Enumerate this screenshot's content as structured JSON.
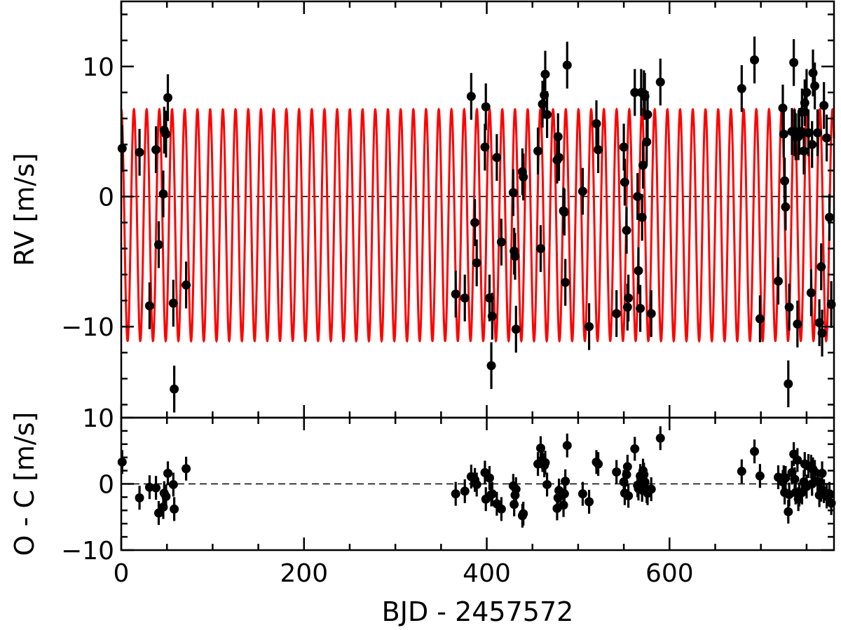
{
  "chart_data": [
    {
      "type": "scatter",
      "panel": "top",
      "ylabel": "RV [m/s]",
      "xlim": [
        0,
        780
      ],
      "ylim": [
        -17,
        15
      ],
      "x_ticks": [
        0,
        200,
        400,
        600
      ],
      "y_ticks": [
        -10,
        0,
        10
      ],
      "y_tick_labels": [
        "−10",
        "0",
        "10"
      ],
      "zero_line": "dashed",
      "grid": false,
      "model": {
        "name": "",
        "color": "#ff0000",
        "type": "sinusoid",
        "amplitude": 8.9,
        "offset": -2.2,
        "period": 13.9,
        "phase": 0.0
      },
      "series": [
        {
          "color": "#000000",
          "error": 1.8,
          "points": [
            [
              1,
              3.7
            ],
            [
              20,
              3.4
            ],
            [
              31,
              -8.4
            ],
            [
              38,
              3.6
            ],
            [
              41,
              -3.7
            ],
            [
              46,
              0.2
            ],
            [
              47,
              5.1
            ],
            [
              49,
              4.8
            ],
            [
              51,
              7.6
            ],
            [
              57,
              -8.2
            ],
            [
              58,
              -14.8
            ],
            [
              71,
              -6.8
            ],
            [
              366,
              -7.5
            ],
            [
              376,
              -7.8
            ],
            [
              383,
              7.7
            ],
            [
              387,
              -2.0
            ],
            [
              389,
              -5.1
            ],
            [
              398,
              3.8
            ],
            [
              399,
              6.9
            ],
            [
              403,
              -7.8
            ],
            [
              405,
              -13.0
            ],
            [
              406,
              -9.2
            ],
            [
              411,
              3.0
            ],
            [
              416,
              -3.5
            ],
            [
              429,
              0.3
            ],
            [
              430,
              -4.2
            ],
            [
              431,
              -4.6
            ],
            [
              432,
              -10.2
            ],
            [
              439,
              1.9
            ],
            [
              440,
              1.5
            ],
            [
              456,
              3.5
            ],
            [
              459,
              -4.0
            ],
            [
              461,
              7.1
            ],
            [
              463,
              7.8
            ],
            [
              464,
              9.4
            ],
            [
              466,
              6.3
            ],
            [
              477,
              2.8
            ],
            [
              478,
              4.6
            ],
            [
              479,
              3.0
            ],
            [
              484,
              -1.1
            ],
            [
              485,
              -1.2
            ],
            [
              486,
              -6.6
            ],
            [
              488,
              10.1
            ],
            [
              505,
              0.4
            ],
            [
              512,
              -10.0
            ],
            [
              520,
              5.6
            ],
            [
              522,
              3.6
            ],
            [
              542,
              -9.0
            ],
            [
              550,
              3.8
            ],
            [
              551,
              1.1
            ],
            [
              553,
              -2.6
            ],
            [
              554,
              -8.5
            ],
            [
              555,
              -7.8
            ],
            [
              562,
              8.0
            ],
            [
              565,
              0.0
            ],
            [
              566,
              -5.7
            ],
            [
              568,
              -8.6
            ],
            [
              569,
              8.0
            ],
            [
              570,
              -1.6
            ],
            [
              571,
              2.4
            ],
            [
              572,
              7.9
            ],
            [
              573,
              7.7
            ],
            [
              575,
              4.2
            ],
            [
              576,
              6.3
            ],
            [
              580,
              -9.0
            ],
            [
              590,
              8.8
            ],
            [
              679,
              8.3
            ],
            [
              693,
              10.5
            ],
            [
              699,
              -9.4
            ],
            [
              719,
              -6.5
            ],
            [
              724,
              6.8
            ],
            [
              725,
              4.8
            ],
            [
              726,
              1.2
            ],
            [
              727,
              -0.8
            ],
            [
              730,
              -14.4
            ],
            [
              731,
              -8.5
            ],
            [
              734,
              5.0
            ],
            [
              736,
              10.3
            ],
            [
              737,
              4.9
            ],
            [
              738,
              4.6
            ],
            [
              740,
              -9.8
            ],
            [
              741,
              4.6
            ],
            [
              742,
              5.0
            ],
            [
              745,
              6.5
            ],
            [
              747,
              3.5
            ],
            [
              748,
              7.2
            ],
            [
              750,
              8.0
            ],
            [
              752,
              4.9
            ],
            [
              755,
              -7.4
            ],
            [
              756,
              4.0
            ],
            [
              757,
              9.5
            ],
            [
              759,
              8.5
            ],
            [
              762,
              4.9
            ],
            [
              764,
              -9.7
            ],
            [
              766,
              -5.4
            ],
            [
              767,
              -10.5
            ],
            [
              769,
              7.0
            ],
            [
              772,
              4.5
            ],
            [
              775,
              -1.6
            ],
            [
              777,
              -8.3
            ]
          ]
        }
      ]
    },
    {
      "type": "scatter",
      "panel": "bottom",
      "xlabel": "BJD - 2457572",
      "ylabel": "O - C [m/s]",
      "xlim": [
        0,
        780
      ],
      "ylim": [
        -10,
        10
      ],
      "x_ticks": [
        0,
        200,
        400,
        600
      ],
      "x_tick_labels": [
        "0",
        "200",
        "400",
        "600"
      ],
      "y_ticks": [
        -10,
        0,
        10
      ],
      "y_tick_labels": [
        "−10",
        "0",
        "10"
      ],
      "zero_line": "dashed",
      "grid": false,
      "series": [
        {
          "color": "#000000",
          "error": 1.8,
          "points": [
            [
              1,
              3.3
            ],
            [
              20,
              -2.1
            ],
            [
              31,
              -0.5
            ],
            [
              38,
              -0.6
            ],
            [
              41,
              -4.4
            ],
            [
              46,
              -3.5
            ],
            [
              47,
              -1.4
            ],
            [
              49,
              -1.9
            ],
            [
              51,
              1.6
            ],
            [
              57,
              -0.1
            ],
            [
              58,
              -3.8
            ],
            [
              71,
              2.3
            ],
            [
              366,
              -1.5
            ],
            [
              376,
              -1.1
            ],
            [
              383,
              1.1
            ],
            [
              387,
              0.6
            ],
            [
              389,
              -0.1
            ],
            [
              398,
              1.7
            ],
            [
              399,
              -2.3
            ],
            [
              403,
              0.9
            ],
            [
              405,
              -1.6
            ],
            [
              406,
              -1.5
            ],
            [
              411,
              -3.0
            ],
            [
              416,
              -3.8
            ],
            [
              429,
              -0.3
            ],
            [
              430,
              -3.1
            ],
            [
              431,
              -1.7
            ],
            [
              432,
              -0.8
            ],
            [
              439,
              -4.8
            ],
            [
              440,
              -4.5
            ],
            [
              456,
              3.0
            ],
            [
              459,
              5.4
            ],
            [
              461,
              3.6
            ],
            [
              463,
              2.8
            ],
            [
              464,
              3.2
            ],
            [
              466,
              -0.1
            ],
            [
              477,
              -3.7
            ],
            [
              478,
              -2.1
            ],
            [
              479,
              -1.0
            ],
            [
              484,
              -3.2
            ],
            [
              485,
              -1.5
            ],
            [
              486,
              0.4
            ],
            [
              488,
              5.8
            ],
            [
              505,
              -1.5
            ],
            [
              512,
              -2.7
            ],
            [
              520,
              3.3
            ],
            [
              522,
              3.0
            ],
            [
              542,
              1.8
            ],
            [
              550,
              0.3
            ],
            [
              551,
              -1.4
            ],
            [
              553,
              1.4
            ],
            [
              554,
              2.6
            ],
            [
              555,
              -1.8
            ],
            [
              562,
              5.3
            ],
            [
              565,
              -0.2
            ],
            [
              566,
              -0.7
            ],
            [
              568,
              1.2
            ],
            [
              569,
              0.2
            ],
            [
              570,
              -0.9
            ],
            [
              571,
              2.0
            ],
            [
              572,
              1.4
            ],
            [
              573,
              0.3
            ],
            [
              575,
              -1.1
            ],
            [
              576,
              -1.4
            ],
            [
              580,
              -0.8
            ],
            [
              590,
              6.9
            ],
            [
              679,
              1.9
            ],
            [
              693,
              4.9
            ],
            [
              699,
              1.2
            ],
            [
              719,
              1.0
            ],
            [
              724,
              0.3
            ],
            [
              725,
              1.0
            ],
            [
              726,
              -1.3
            ],
            [
              727,
              0.9
            ],
            [
              730,
              -4.2
            ],
            [
              731,
              -1.6
            ],
            [
              734,
              1.7
            ],
            [
              736,
              4.5
            ],
            [
              737,
              0.7
            ],
            [
              738,
              -1.3
            ],
            [
              740,
              3.6
            ],
            [
              741,
              -2.3
            ],
            [
              742,
              -1.6
            ],
            [
              745,
              -1.3
            ],
            [
              747,
              0.3
            ],
            [
              748,
              3.0
            ],
            [
              750,
              -0.4
            ],
            [
              752,
              2.7
            ],
            [
              755,
              2.6
            ],
            [
              756,
              0.0
            ],
            [
              757,
              2.2
            ],
            [
              759,
              1.8
            ],
            [
              762,
              0.4
            ],
            [
              764,
              -1.7
            ],
            [
              766,
              -0.9
            ],
            [
              767,
              1.6
            ],
            [
              769,
              -1.1
            ],
            [
              772,
              -1.9
            ],
            [
              775,
              -1.5
            ],
            [
              777,
              -2.9
            ]
          ]
        }
      ]
    }
  ]
}
